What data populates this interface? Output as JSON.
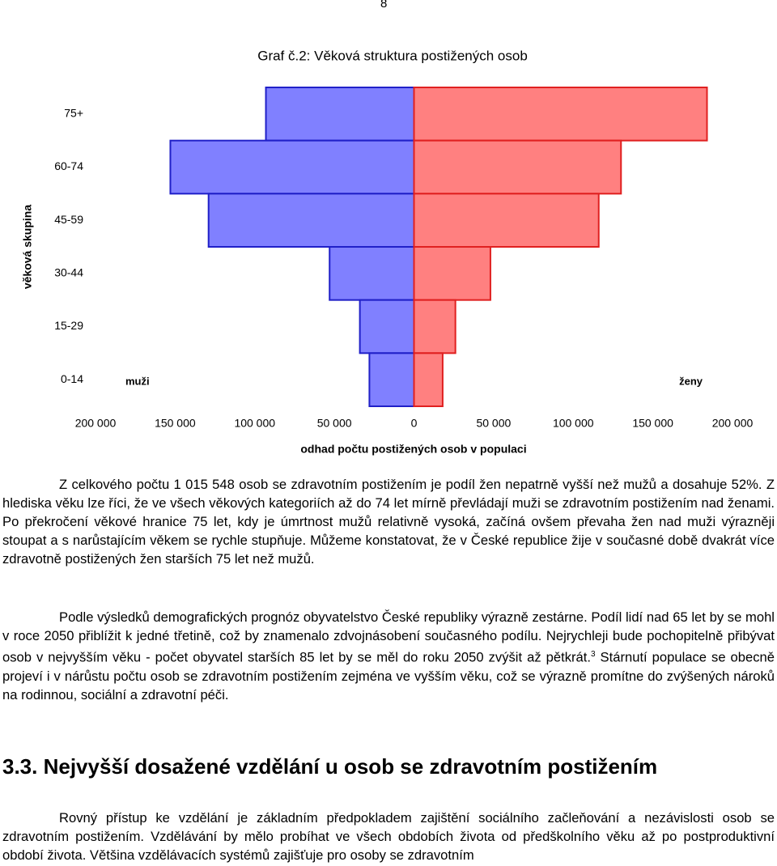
{
  "page_number": "8",
  "chart_data": {
    "type": "pyramid",
    "title": "Graf č.2: Věková struktura postižených osob",
    "ylabel": "věková skupina",
    "xlabel": "odhad počtu postižených osob v populaci",
    "categories": [
      "75+",
      "60-74",
      "45-59",
      "30-44",
      "15-29",
      "0-14"
    ],
    "series": [
      {
        "name": "muži",
        "color": "#8080ff",
        "edge": "#2020c8",
        "side": "left",
        "values": [
          93000,
          153000,
          129000,
          53000,
          34000,
          28000
        ]
      },
      {
        "name": "ženy",
        "color": "#ff8080",
        "edge": "#e02020",
        "side": "right",
        "values": [
          184000,
          130000,
          116000,
          48000,
          26000,
          18000
        ]
      }
    ],
    "xlim": [
      -200000,
      200000
    ],
    "xticks": [
      {
        "value": -200000,
        "label": "200 000"
      },
      {
        "value": -150000,
        "label": "150 000"
      },
      {
        "value": -100000,
        "label": "100 000"
      },
      {
        "value": -50000,
        "label": "50 000"
      },
      0,
      {
        "value": 50000,
        "label": "50 000"
      },
      {
        "value": 100000,
        "label": "100 000"
      },
      {
        "value": 150000,
        "label": "150 000"
      },
      {
        "value": 200000,
        "label": "200 000"
      }
    ],
    "grid": false
  },
  "paragraphs": [
    {
      "text": "Z celkového počtu 1 015 548  osob se zdravotním postižením  je podíl žen nepatrně vyšší než mužů a dosahuje 52%. Z hlediska věku lze říci, že ve všech věkových kategoriích až do 74 let mírně převládají muži se zdravotním postižením nad ženami. Po překročení věkové hranice 75 let, kdy je úmrtnost mužů relativně vysoká, začíná ovšem převaha žen nad muži výrazněji stoupat a s narůstajícím věkem se rychle stupňuje. Můžeme konstatovat, že v České republice žije v současné době dvakrát více zdravotně postižených žen starších 75 let než mužů."
    },
    {
      "text": "Podle výsledků demografických prognóz obyvatelstvo České republiky výrazně zestárne. Podíl lidí nad 65 let by se mohl v roce 2050 přiblížit k jedné třetině, což by znamenalo zdvojnásobení současného podílu. Nejrychleji bude pochopitelně přibývat osob v nejvyšším věku  - počet obyvatel starších 85 let by se měl do roku 2050 zvýšit až pětkrát.",
      "footnote": "3",
      "after": " Stárnutí populace se obecně projeví i v nárůstu počtu osob se zdravotním postižením zejména ve vyšším věku, což se  výrazně promítne do zvýšených nároků na rodinnou, sociální a zdravotní péči."
    }
  ],
  "heading": "3.3. Nejvyšší dosažené vzdělání u osob se zdravotním postižením",
  "last_paragraph": "Rovný přístup ke vzdělání je základním předpokladem zajištění sociálního začleňování a nezávislosti osob se zdravotním postižením. Vzdělávání by mělo probíhat ve všech obdobích života od předškolního věku až po postproduktivní období života. Většina vzdělávacích systémů zajišťuje pro osoby se zdravotním"
}
